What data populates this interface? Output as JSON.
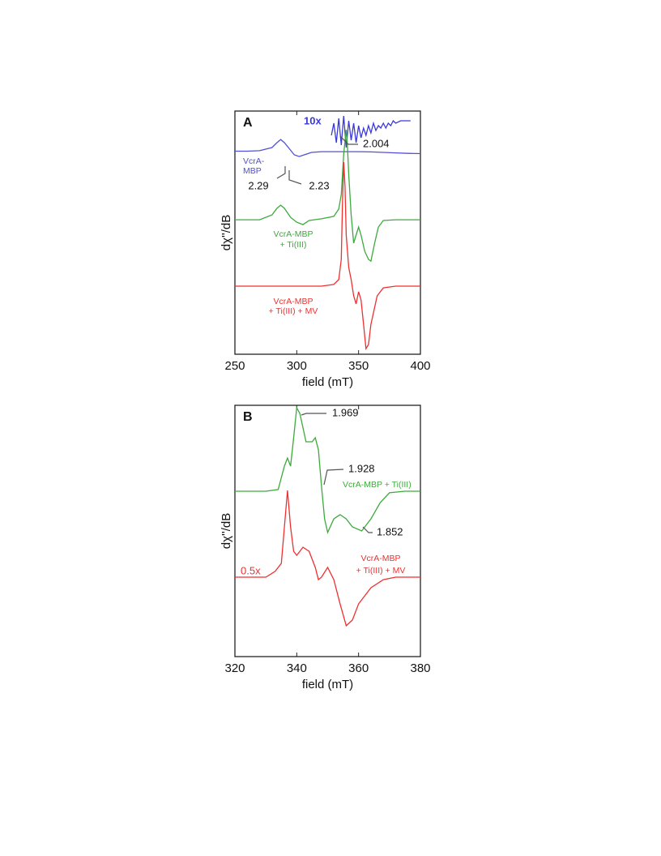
{
  "chart_data": [
    {
      "type": "line",
      "panel_label": "A",
      "xlabel": "field (mT)",
      "ylabel": "dχ''/dB",
      "xlim": [
        250,
        400
      ],
      "xticks": [
        250,
        300,
        350,
        400
      ],
      "ylim": [
        0,
        100
      ],
      "series": [
        {
          "name": [
            "VcrA-",
            "MBP"
          ],
          "color": "#5050d8",
          "x": [
            250,
            260,
            270,
            280,
            284,
            287,
            290,
            294,
            298,
            302,
            306,
            312,
            320,
            330,
            340,
            350,
            360,
            370,
            380,
            390,
            400
          ],
          "values": [
            83.5,
            83.5,
            83.7,
            85,
            87,
            88.3,
            87,
            84.5,
            82,
            81.3,
            82,
            83,
            83.3,
            83.3,
            83.3,
            83.3,
            83.2,
            83,
            82.8,
            82.6,
            82.5
          ]
        },
        {
          "name": "10x",
          "color": "#3a3ad8",
          "x": [
            328,
            330,
            332,
            334,
            336,
            338,
            340,
            342,
            344,
            346,
            348,
            350,
            352,
            354,
            356,
            358,
            360,
            362,
            364,
            366,
            368,
            370,
            372,
            374,
            376,
            378,
            380,
            384,
            388,
            392
          ],
          "values": [
            90,
            95,
            87,
            97,
            86,
            98,
            85,
            96,
            88,
            95,
            87,
            94,
            89,
            93,
            90,
            94,
            91,
            95,
            92,
            94,
            93,
            95,
            93,
            95,
            94,
            96,
            95,
            96,
            96,
            96
          ]
        },
        {
          "name": [
            "VcrA-MBP",
            "+ Ti(III)"
          ],
          "color": "#3caa3c",
          "x": [
            250,
            260,
            270,
            280,
            284,
            287,
            290,
            295,
            300,
            305,
            310,
            320,
            330,
            334,
            336,
            338,
            340,
            341,
            342,
            344,
            346,
            348,
            350,
            352,
            355,
            358,
            360,
            363,
            366,
            370,
            380,
            400
          ],
          "values": [
            55.3,
            55.3,
            55.3,
            57.3,
            60,
            61.3,
            60,
            56.3,
            54.3,
            53.3,
            55,
            55.7,
            56.7,
            59.7,
            65.7,
            82.3,
            92.3,
            85.7,
            74,
            57.3,
            45.7,
            49,
            52.3,
            49,
            42.3,
            39,
            38.3,
            45.7,
            52.3,
            55,
            55.3,
            55.3
          ]
        },
        {
          "name": [
            "VcrA-MBP",
            "+ Ti(III)  + MV"
          ],
          "color": "#ee3030",
          "x": [
            250,
            300,
            320,
            330,
            334,
            336,
            337,
            338,
            339,
            340,
            342,
            344,
            346,
            348,
            350,
            352,
            354,
            356,
            358,
            360,
            365,
            370,
            380,
            400
          ],
          "values": [
            28,
            28,
            28,
            28.7,
            30.7,
            39,
            62.3,
            79,
            69,
            49,
            35.7,
            30.7,
            24,
            20.7,
            25.7,
            22.3,
            12.3,
            2.3,
            4,
            12.3,
            24,
            27.3,
            28,
            28
          ]
        }
      ],
      "annotations": [
        "2.004",
        "2.29",
        "2.23"
      ]
    },
    {
      "type": "line",
      "panel_label": "B",
      "xlabel": "field (mT)",
      "ylabel": "dχ''/dB",
      "xlim": [
        320,
        380
      ],
      "xticks": [
        320,
        340,
        360,
        380
      ],
      "ylim": [
        0,
        100
      ],
      "series": [
        {
          "name": "VcrA-MBP + Ti(III)",
          "color": "#3caa3c",
          "x": [
            320,
            330,
            334,
            336,
            337,
            338,
            339,
            340,
            341,
            343,
            345,
            346,
            347,
            348,
            349,
            350,
            352,
            354,
            356,
            358,
            361,
            364,
            367,
            370,
            375,
            380
          ],
          "values": [
            65.8,
            65.8,
            66.5,
            75.8,
            79,
            75.8,
            87.1,
            99,
            96.8,
            85.5,
            85.5,
            87.1,
            82.3,
            67.7,
            54.8,
            49.4,
            54.8,
            56.5,
            54.8,
            51.6,
            50,
            54.8,
            61.3,
            65.2,
            65.8,
            65.8
          ]
        },
        {
          "name": [
            "VcrA-MBP",
            "+ Ti(III)  + MV"
          ],
          "color": "#ee3030",
          "x": [
            320,
            330,
            333,
            335,
            336,
            337,
            338,
            339,
            340,
            342,
            344,
            346,
            347,
            348,
            350,
            352,
            354,
            356,
            358,
            360,
            364,
            368,
            372,
            380
          ],
          "values": [
            31.6,
            31.6,
            33.9,
            37.1,
            51.6,
            66.1,
            51.6,
            41.9,
            40.3,
            43.5,
            41.9,
            35.5,
            30.6,
            31.6,
            35.5,
            30.6,
            21,
            12.3,
            14.5,
            21,
            27.4,
            30.6,
            31.6,
            31.6
          ]
        }
      ],
      "annotations": [
        "1.969",
        "1.928",
        "1.852",
        "0.5x"
      ]
    }
  ]
}
